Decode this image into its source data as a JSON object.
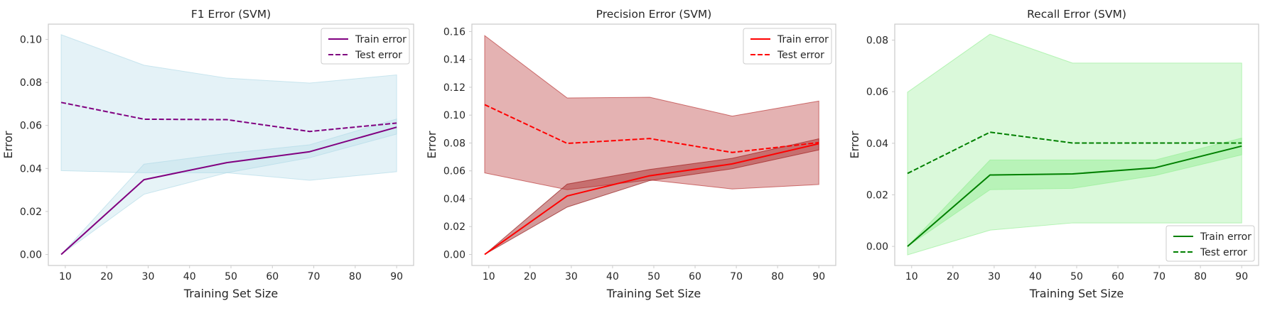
{
  "chart_data": [
    {
      "type": "line",
      "title": "F1 Error (SVM)",
      "xlabel": "Training Set Size",
      "ylabel": "Error",
      "xlim": [
        5.9,
        94.1
      ],
      "ylim": [
        -0.0051,
        0.1071
      ],
      "xticks": [
        10,
        20,
        30,
        40,
        50,
        60,
        70,
        80,
        90
      ],
      "yticks": [
        0.0,
        0.02,
        0.04,
        0.06,
        0.08,
        0.1
      ],
      "ytick_labels": [
        "0.00",
        "0.02",
        "0.04",
        "0.06",
        "0.08",
        "0.10"
      ],
      "grid": false,
      "legend_position": "top-right",
      "x": [
        9,
        29,
        49,
        69,
        90
      ],
      "series": [
        {
          "name": "Train error",
          "style": "solid",
          "color": "#800080",
          "values": [
            0.0,
            0.0348,
            0.0427,
            0.0478,
            0.0592
          ],
          "lower": [
            0.0,
            0.028,
            0.038,
            0.045,
            0.056
          ],
          "upper": [
            0.0,
            0.042,
            0.047,
            0.051,
            0.063
          ],
          "band_color": "#add8e6",
          "band_opacity": 0.3
        },
        {
          "name": "Test error",
          "style": "dashed",
          "color": "#800080",
          "values": [
            0.0707,
            0.0629,
            0.0627,
            0.0572,
            0.0611
          ],
          "lower": [
            0.039,
            0.038,
            0.038,
            0.0345,
            0.0385
          ],
          "upper": [
            0.1022,
            0.088,
            0.082,
            0.0797,
            0.0835
          ],
          "band_color": "#add8e6",
          "band_opacity": 0.33
        }
      ]
    },
    {
      "type": "line",
      "title": "Precision Error (SVM)",
      "xlabel": "Training Set Size",
      "ylabel": "Error",
      "xlim": [
        5.9,
        94.1
      ],
      "ylim": [
        -0.0079,
        0.1653
      ],
      "xticks": [
        10,
        20,
        30,
        40,
        50,
        60,
        70,
        80,
        90
      ],
      "yticks": [
        0.0,
        0.02,
        0.04,
        0.06,
        0.08,
        0.1,
        0.12,
        0.14,
        0.16
      ],
      "ytick_labels": [
        "0.00",
        "0.02",
        "0.04",
        "0.06",
        "0.08",
        "0.10",
        "0.12",
        "0.14",
        "0.16"
      ],
      "grid": false,
      "legend_position": "top-right",
      "x": [
        9,
        29,
        49,
        69,
        90
      ],
      "series": [
        {
          "name": "Train error",
          "style": "solid",
          "color": "#ff0000",
          "values": [
            0.0,
            0.042,
            0.0565,
            0.065,
            0.0795
          ],
          "lower": [
            0.0,
            0.034,
            0.053,
            0.0615,
            0.075
          ],
          "upper": [
            0.0,
            0.0505,
            0.061,
            0.069,
            0.083
          ],
          "band_color": "#8b0000",
          "band_opacity": 0.4
        },
        {
          "name": "Test error",
          "style": "dashed",
          "color": "#ff0000",
          "values": [
            0.1075,
            0.0797,
            0.0832,
            0.0732,
            0.0803
          ],
          "lower": [
            0.0585,
            0.0465,
            0.0535,
            0.047,
            0.0502
          ],
          "upper": [
            0.1571,
            0.1123,
            0.1128,
            0.0993,
            0.1101
          ],
          "band_color": "#b22222",
          "band_opacity": 0.35
        }
      ]
    },
    {
      "type": "line",
      "title": "Recall Error (SVM)",
      "xlabel": "Training Set Size",
      "ylabel": "Error",
      "xlim": [
        5.9,
        94.1
      ],
      "ylim": [
        -0.0074,
        0.0862
      ],
      "xticks": [
        10,
        20,
        30,
        40,
        50,
        60,
        70,
        80,
        90
      ],
      "yticks": [
        0.0,
        0.02,
        0.04,
        0.06,
        0.08
      ],
      "ytick_labels": [
        "0.00",
        "0.02",
        "0.04",
        "0.06",
        "0.08"
      ],
      "grid": false,
      "legend_position": "bottom-right",
      "x": [
        9,
        29,
        49,
        69,
        90
      ],
      "series": [
        {
          "name": "Train error",
          "style": "solid",
          "color": "#008000",
          "values": [
            0.0,
            0.0277,
            0.0281,
            0.0305,
            0.0389
          ],
          "lower": [
            0.0,
            0.022,
            0.0225,
            0.0275,
            0.0355
          ],
          "upper": [
            0.0,
            0.0335,
            0.0335,
            0.0335,
            0.042
          ],
          "band_color": "#90ee90",
          "band_opacity": 0.45
        },
        {
          "name": "Test error",
          "style": "dashed",
          "color": "#008000",
          "values": [
            0.0283,
            0.0443,
            0.0401,
            0.0401,
            0.0401
          ],
          "lower": [
            -0.0033,
            0.0063,
            0.0091,
            0.0091,
            0.0091
          ],
          "upper": [
            0.0598,
            0.0823,
            0.0711,
            0.0711,
            0.0711
          ],
          "band_color": "#90ee90",
          "band_opacity": 0.33
        }
      ]
    }
  ]
}
